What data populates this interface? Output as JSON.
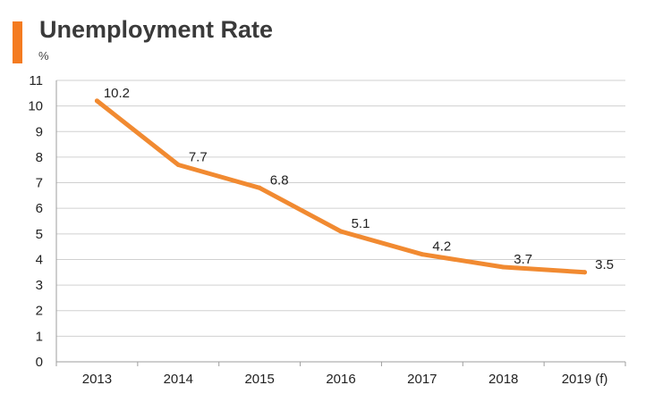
{
  "colors": {
    "accent": "#F47B20",
    "line": "#F18A31",
    "grid": "#D0D0D0",
    "axis": "#9E9E9E",
    "text": "#222222"
  },
  "chart_data": {
    "type": "line",
    "title": "Unemployment Rate",
    "unit": "%",
    "categories": [
      "2013",
      "2014",
      "2015",
      "2016",
      "2017",
      "2018",
      "2019 (f)"
    ],
    "series": [
      {
        "values": [
          10.2,
          7.7,
          6.8,
          5.1,
          4.2,
          3.7,
          3.5
        ]
      }
    ],
    "data_labels": [
      "10.2",
      "7.7",
      "6.8",
      "5.1",
      "4.2",
      "3.7",
      "3.5"
    ],
    "y_ticks": [
      0,
      1,
      2,
      3,
      4,
      5,
      6,
      7,
      8,
      9,
      10,
      11
    ],
    "ylim": [
      0,
      11
    ],
    "grid": true,
    "legend": "none"
  }
}
